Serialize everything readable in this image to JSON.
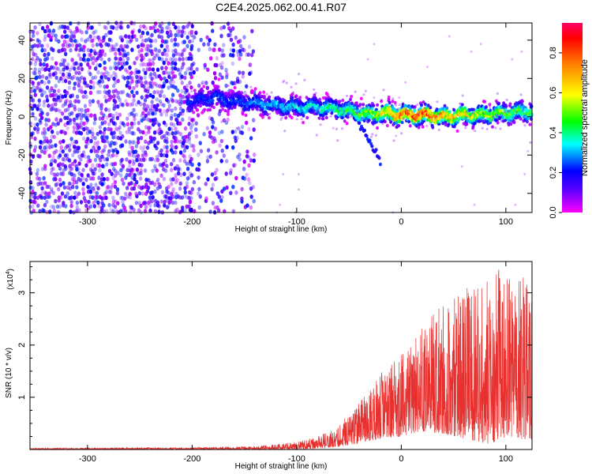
{
  "title": "C2E4.2025.062.00.41.R07",
  "chart_data": [
    {
      "type": "heatmap",
      "name": "spectrogram",
      "xlabel": "Height of straight line (km)",
      "ylabel": "Frequency (Hz)",
      "xlim": [
        -355,
        125
      ],
      "ylim": [
        -50,
        49
      ],
      "xticks": [
        -300,
        -200,
        -100,
        0,
        100
      ],
      "yticks": [
        -40,
        -20,
        0,
        20,
        40
      ],
      "colorbar": {
        "label": "Normalized spectral amplitude",
        "range": [
          0,
          0.95
        ],
        "ticks": [
          "0.0",
          "0.2",
          "0.4",
          "0.6",
          "0.8"
        ],
        "tick_values": [
          0.0,
          0.2,
          0.4,
          0.6,
          0.8
        ]
      },
      "signal_track": {
        "x": [
          -200,
          -180,
          -160,
          -140,
          -120,
          -100,
          -80,
          -60,
          -40,
          -30,
          -20,
          0,
          20,
          40,
          60,
          80,
          100,
          125
        ],
        "frequency": [
          8,
          10,
          8,
          7,
          6,
          5,
          5,
          4,
          2,
          1,
          2,
          1,
          1,
          0,
          1,
          1,
          2,
          3
        ],
        "amplitude": [
          0.22,
          0.25,
          0.25,
          0.3,
          0.32,
          0.35,
          0.38,
          0.42,
          0.5,
          0.55,
          0.58,
          0.78,
          0.85,
          0.72,
          0.62,
          0.55,
          0.5,
          0.45
        ]
      },
      "branch": {
        "x": [
          -40,
          -30,
          -20
        ],
        "frequency": [
          -5,
          -13,
          -23
        ]
      },
      "noise_region": {
        "x_range": [
          -355,
          -140
        ],
        "amplitude": 0.15
      }
    },
    {
      "type": "line",
      "name": "snr",
      "xlabel": "Height of straight line (km)",
      "ylabel": "SNR (10 * v/v)",
      "scale_label": "(x10",
      "scale_exponent": "4",
      "xlim": [
        -355,
        125
      ],
      "ylim": [
        0,
        3.6
      ],
      "xticks": [
        -300,
        -200,
        -100,
        0,
        100
      ],
      "yticks": [
        1,
        2,
        3
      ],
      "color": "#e8312f",
      "envelope": {
        "x": [
          -355,
          -200,
          -140,
          -100,
          -80,
          -60,
          -40,
          -20,
          0,
          20,
          40,
          60,
          80,
          100,
          125
        ],
        "upper": [
          0.03,
          0.04,
          0.06,
          0.15,
          0.25,
          0.45,
          0.95,
          1.45,
          1.9,
          2.35,
          2.8,
          3.1,
          3.2,
          3.6,
          3.2
        ],
        "lower": [
          0.0,
          0.0,
          0.0,
          0.0,
          0.02,
          0.05,
          0.12,
          0.2,
          0.25,
          0.35,
          0.3,
          0.2,
          0.1,
          0.2,
          0.2
        ]
      }
    }
  ]
}
